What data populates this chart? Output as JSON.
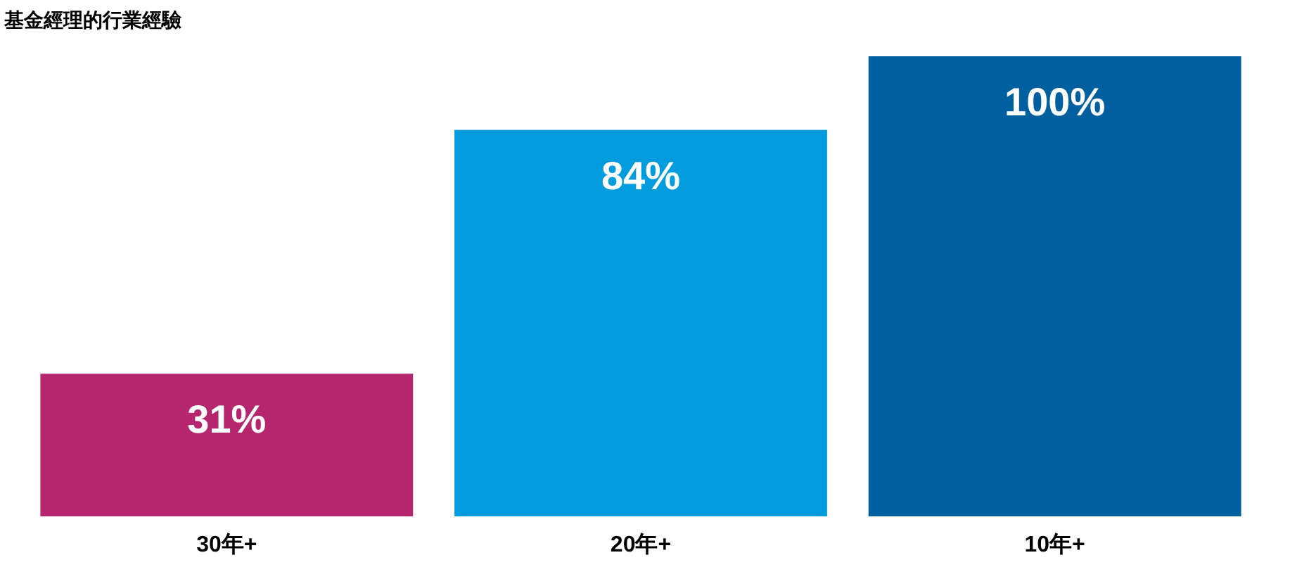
{
  "chart_data": {
    "type": "bar",
    "title": "基金經理的行業經驗",
    "categories": [
      "30年+",
      "20年+",
      "10年+"
    ],
    "values": [
      31,
      84,
      100
    ],
    "colors": [
      "#b5266f",
      "#009cde",
      "#005f9e"
    ],
    "value_labels": [
      "31%",
      "84%",
      "100%"
    ]
  }
}
